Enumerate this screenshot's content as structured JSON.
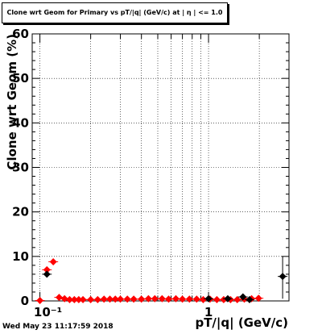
{
  "chart_data": {
    "type": "scatter",
    "title": "Clone wrt Geom for Primary vs pT/|q| (GeV/c) at | η | <= 1.0",
    "xlabel": "pT/|q| (GeV/c)",
    "ylabel": "Clone wrt Geom (%)",
    "x_scale": "log",
    "xlim": [
      0.09,
      3.0
    ],
    "ylim": [
      0,
      60
    ],
    "x_tick_labels": [
      "10⁻¹",
      "1"
    ],
    "y_tick_labels": [
      "0",
      "10",
      "20",
      "30",
      "40",
      "50",
      "60"
    ],
    "grid": true,
    "legend": "none",
    "series": [
      {
        "color": "#ff0000",
        "marker": "diamond",
        "points": [
          {
            "x": 0.1,
            "y": 0.1
          },
          {
            "x": 0.11,
            "y": 7.0
          },
          {
            "x": 0.12,
            "y": 8.8
          },
          {
            "x": 0.13,
            "y": 0.8
          },
          {
            "x": 0.14,
            "y": 0.5
          },
          {
            "x": 0.15,
            "y": 0.3
          },
          {
            "x": 0.16,
            "y": 0.3
          },
          {
            "x": 0.17,
            "y": 0.3
          },
          {
            "x": 0.18,
            "y": 0.3
          },
          {
            "x": 0.2,
            "y": 0.3
          },
          {
            "x": 0.22,
            "y": 0.3
          },
          {
            "x": 0.24,
            "y": 0.4
          },
          {
            "x": 0.26,
            "y": 0.4
          },
          {
            "x": 0.28,
            "y": 0.4
          },
          {
            "x": 0.3,
            "y": 0.4
          },
          {
            "x": 0.33,
            "y": 0.4
          },
          {
            "x": 0.36,
            "y": 0.4
          },
          {
            "x": 0.4,
            "y": 0.4
          },
          {
            "x": 0.44,
            "y": 0.5
          },
          {
            "x": 0.48,
            "y": 0.5
          },
          {
            "x": 0.53,
            "y": 0.5
          },
          {
            "x": 0.58,
            "y": 0.4
          },
          {
            "x": 0.64,
            "y": 0.5
          },
          {
            "x": 0.7,
            "y": 0.4
          },
          {
            "x": 0.77,
            "y": 0.4
          },
          {
            "x": 0.85,
            "y": 0.4
          },
          {
            "x": 0.93,
            "y": 0.3
          },
          {
            "x": 1.02,
            "y": 0.4
          },
          {
            "x": 1.12,
            "y": 0.3
          },
          {
            "x": 1.23,
            "y": 0.3
          },
          {
            "x": 1.35,
            "y": 0.3
          },
          {
            "x": 1.48,
            "y": 0.3
          },
          {
            "x": 1.63,
            "y": 0.4
          },
          {
            "x": 1.8,
            "y": 0.5
          },
          {
            "x": 1.98,
            "y": 0.6
          }
        ]
      },
      {
        "color": "#000000",
        "marker": "diamond",
        "points": [
          {
            "x": 0.11,
            "y": 6.0
          },
          {
            "x": 1.0,
            "y": 0.5
          },
          {
            "x": 1.3,
            "y": 0.5
          },
          {
            "x": 1.6,
            "y": 0.9
          },
          {
            "x": 1.75,
            "y": 0.3
          },
          {
            "x": 2.75,
            "y": 5.5,
            "yerr": [
              5.0,
              4.5
            ]
          }
        ]
      }
    ]
  },
  "footer": {
    "timestamp": "Wed May 23 11:17:59 2018"
  }
}
